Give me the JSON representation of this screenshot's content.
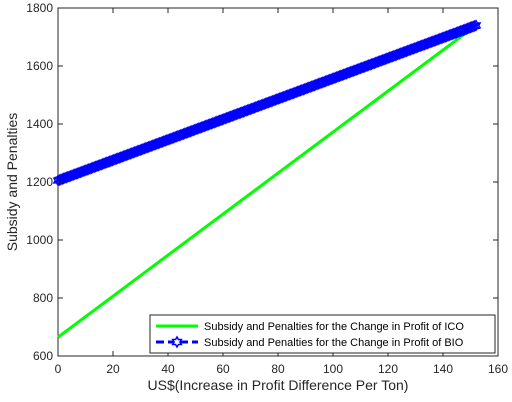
{
  "chart_data": {
    "type": "line",
    "title": "",
    "xlabel": "US$(Increase in Profit Difference Per Ton)",
    "ylabel": "Subsidy and Penalties",
    "xlim": [
      0,
      160
    ],
    "ylim": [
      600,
      1800
    ],
    "xticks": [
      0,
      20,
      40,
      60,
      80,
      100,
      120,
      140,
      160
    ],
    "yticks": [
      600,
      800,
      1000,
      1200,
      1400,
      1600,
      1800
    ],
    "grid": false,
    "legend_position": "bottom-right",
    "series": [
      {
        "name": "Subsidy and Penalties for the Change in Profit of ICO",
        "color": "#00ff00",
        "style": "solid",
        "marker": "none",
        "x": [
          0,
          152
        ],
        "y": [
          665,
          1740
        ]
      },
      {
        "name": "Subsidy and Penalties for the Change in Profit of BIO",
        "color": "#0000ff",
        "style": "dashed",
        "marker": "hexagram",
        "x": [
          0,
          152
        ],
        "y": [
          1205,
          1740
        ]
      }
    ]
  }
}
